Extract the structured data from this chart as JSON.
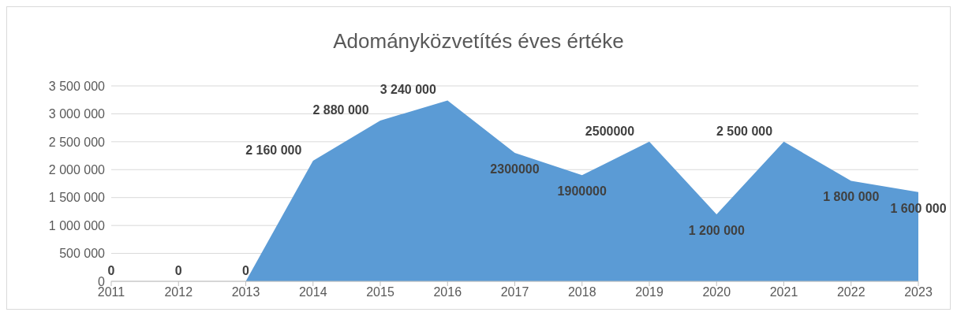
{
  "chart_data": {
    "type": "area",
    "title": "Adományközvetítés éves értéke",
    "categories": [
      "2011",
      "2012",
      "2013",
      "2014",
      "2015",
      "2016",
      "2017",
      "2018",
      "2019",
      "2020",
      "2021",
      "2022",
      "2023"
    ],
    "series": [
      {
        "color": "#5b9bd5",
        "values": [
          0,
          0,
          0,
          2160000,
          2880000,
          3240000,
          2300000,
          1900000,
          2500000,
          1200000,
          2500000,
          1800000,
          1600000
        ],
        "value_labels": [
          "0",
          "0",
          "0",
          "2 160 000",
          "2 880 000",
          "3 240 000",
          "2300000",
          "1900000",
          "2500000",
          "1 200 000",
          "2 500 000",
          "1 800 000",
          "1 600 000"
        ]
      }
    ],
    "ylim": [
      0,
      3500000
    ],
    "yticks": [
      {
        "value": 0,
        "label": "0"
      },
      {
        "value": 500000,
        "label": "500 000"
      },
      {
        "value": 1000000,
        "label": "1 000 000"
      },
      {
        "value": 1500000,
        "label": "1 500 000"
      },
      {
        "value": 2000000,
        "label": "2 000 000"
      },
      {
        "value": 2500000,
        "label": "2 500 000"
      },
      {
        "value": 3000000,
        "label": "3 000 000"
      },
      {
        "value": 3500000,
        "label": "3 500 000"
      }
    ],
    "grid": "y",
    "legend": false
  }
}
